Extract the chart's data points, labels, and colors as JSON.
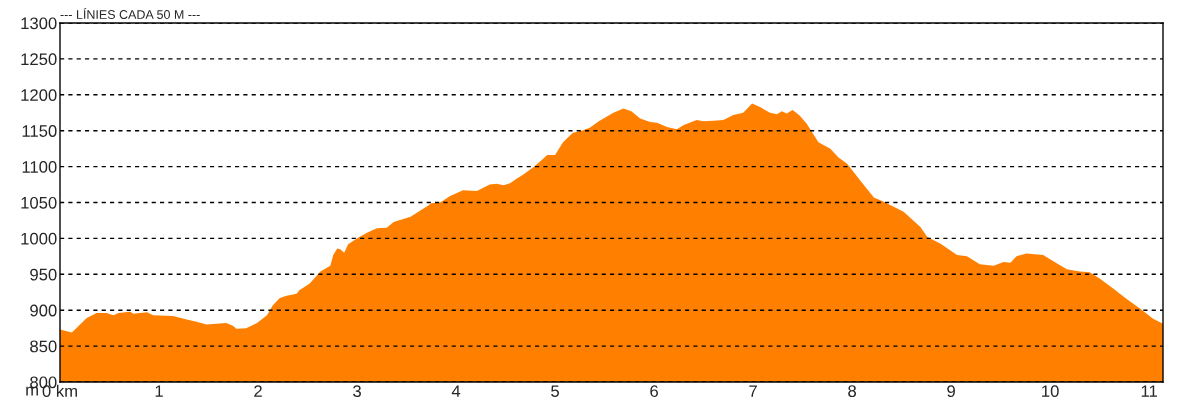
{
  "chart_data": {
    "type": "area",
    "title": "--- LÍNIES CADA 50 M ---",
    "ylabel": "m",
    "x": [
      0,
      0.12,
      0.27,
      0.37,
      0.47,
      0.54,
      0.59,
      0.71,
      0.74,
      0.88,
      0.94,
      1.14,
      1.28,
      1.38,
      1.48,
      1.68,
      1.75,
      1.78,
      1.88,
      1.99,
      2.09,
      2.15,
      2.22,
      2.29,
      2.39,
      2.42,
      2.52,
      2.63,
      2.73,
      2.76,
      2.8,
      2.83,
      2.87,
      2.91,
      3.01,
      3.1,
      3.2,
      3.3,
      3.37,
      3.54,
      3.64,
      3.7,
      3.75,
      3.84,
      3.94,
      4.07,
      4.21,
      4.34,
      4.41,
      4.48,
      4.55,
      4.61,
      4.68,
      4.78,
      4.88,
      4.92,
      5.0,
      5.08,
      5.18,
      5.27,
      5.35,
      5.45,
      5.59,
      5.69,
      5.77,
      5.86,
      5.96,
      6.03,
      6.13,
      6.23,
      6.3,
      6.43,
      6.5,
      6.6,
      6.7,
      6.8,
      6.9,
      6.99,
      7.07,
      7.17,
      7.24,
      7.29,
      7.34,
      7.4,
      7.47,
      7.54,
      7.66,
      7.78,
      7.86,
      7.95,
      8.08,
      8.22,
      8.32,
      8.52,
      8.69,
      8.76,
      8.89,
      9.06,
      9.16,
      9.29,
      9.43,
      9.53,
      9.6,
      9.66,
      9.76,
      9.93,
      10.07,
      10.17,
      10.3,
      10.4,
      10.5,
      10.64,
      10.77,
      10.91,
      11.04,
      11.14
    ],
    "series": [
      {
        "color": "#ff8000",
        "values": [
          873,
          869,
          889,
          896,
          896,
          893,
          896,
          898,
          895,
          897,
          893,
          892,
          887,
          884,
          880,
          882,
          878,
          874,
          875,
          882,
          893,
          907,
          917,
          920,
          923,
          928,
          937,
          954,
          962,
          977,
          986,
          985,
          980,
          992,
          1001,
          1008,
          1014,
          1015,
          1023,
          1030,
          1039,
          1044,
          1049,
          1050,
          1059,
          1067,
          1066,
          1075,
          1076,
          1074,
          1077,
          1083,
          1089,
          1099,
          1111,
          1116,
          1116,
          1134,
          1147,
          1150,
          1154,
          1164,
          1175,
          1181,
          1177,
          1167,
          1162,
          1161,
          1155,
          1152,
          1158,
          1165,
          1163,
          1164,
          1165,
          1172,
          1175,
          1188,
          1183,
          1175,
          1173,
          1177,
          1174,
          1179,
          1171,
          1160,
          1134,
          1125,
          1113,
          1104,
          1081,
          1057,
          1051,
          1037,
          1016,
          1002,
          993,
          977,
          975,
          964,
          962,
          967,
          966,
          975,
          979,
          977,
          965,
          957,
          954,
          953,
          944,
          930,
          916,
          902,
          888,
          881
        ]
      }
    ],
    "xlim": [
      0,
      11.14
    ],
    "ylim": [
      800,
      1300
    ],
    "xticks": [
      {
        "value": 0,
        "label": "0 km"
      },
      1,
      2,
      3,
      4,
      5,
      6,
      7,
      8,
      9,
      10,
      11
    ],
    "yticks": [
      800,
      850,
      900,
      950,
      1000,
      1050,
      1100,
      1150,
      1200,
      1250,
      1300
    ],
    "grid": "y",
    "line_style": "dashed"
  }
}
